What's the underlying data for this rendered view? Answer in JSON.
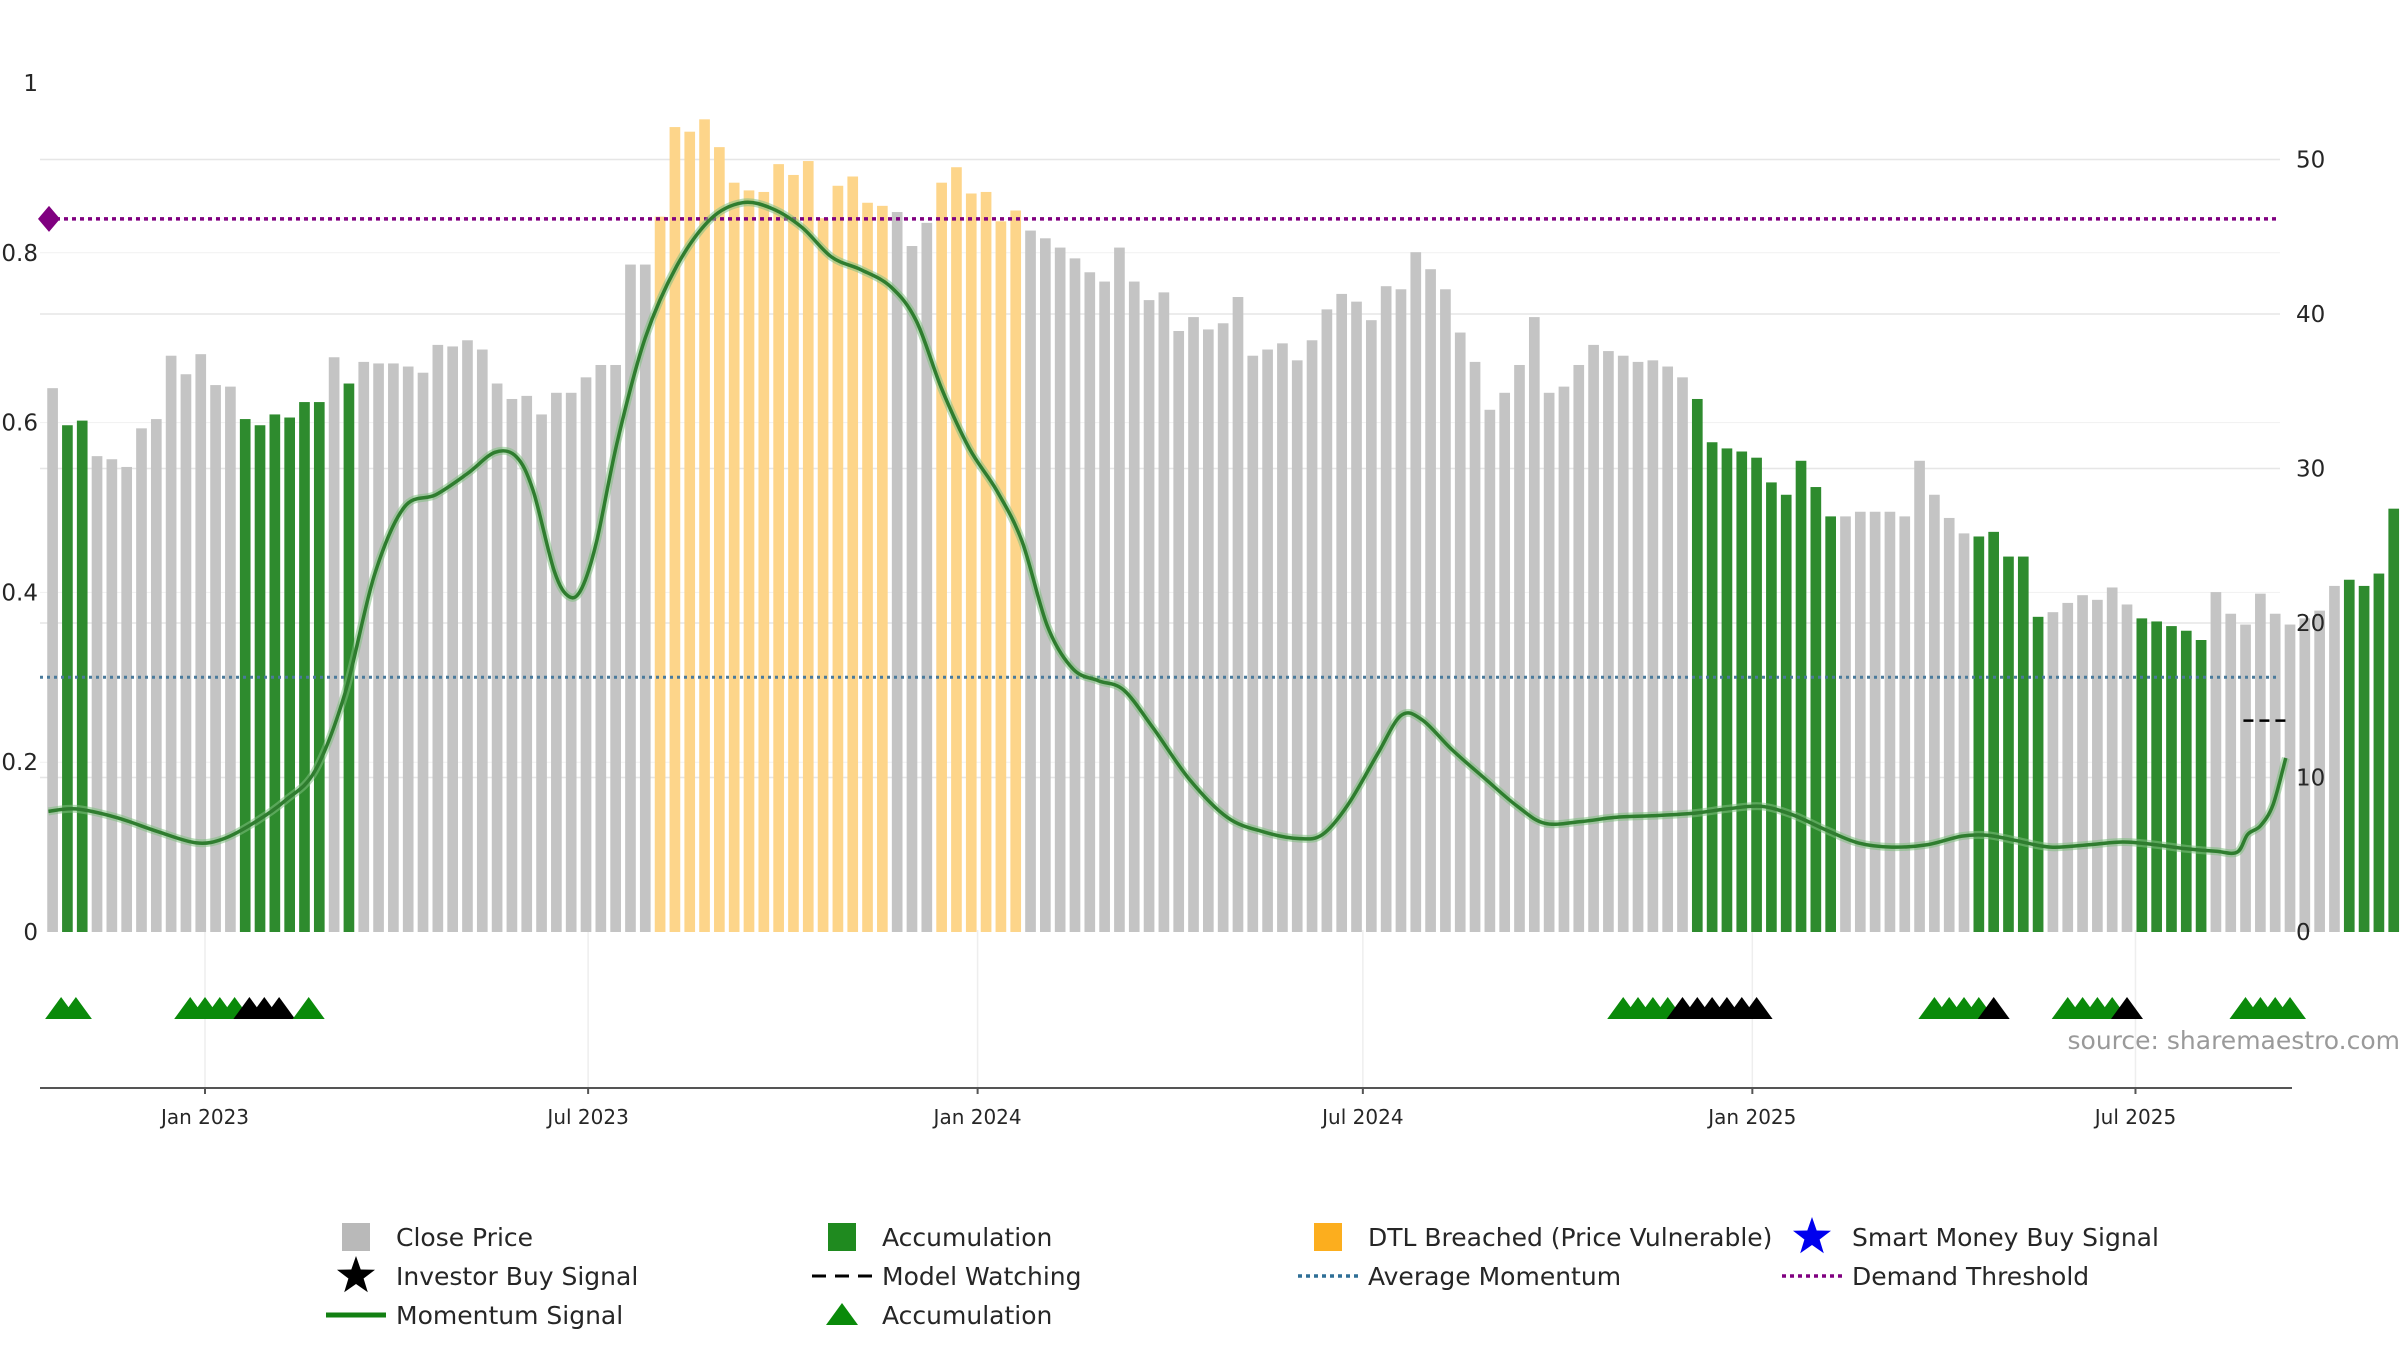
{
  "chart_data": {
    "type": "bar",
    "source_note": "source: sharemaestro.com",
    "left_axis": {
      "ylim": [
        0,
        1
      ],
      "ticks": [
        "0",
        "0.2",
        "0.4",
        "0.6",
        "0.8",
        "1"
      ],
      "tick_values": [
        0,
        0.2,
        0.4,
        0.6,
        0.8,
        1
      ]
    },
    "right_axis": {
      "ylim": [
        0,
        55.3
      ],
      "ticks": [
        "0",
        "10",
        "20",
        "30",
        "40",
        "50"
      ],
      "tick_values": [
        0,
        10,
        20,
        30,
        40,
        50
      ]
    },
    "x_axis": {
      "start": "2022-10-16",
      "end": "2025-09-12",
      "ticks": [
        {
          "label": "Jan 2023",
          "date": "2023-01-01"
        },
        {
          "label": "Jul 2023",
          "date": "2023-07-01"
        },
        {
          "label": "Jan 2024",
          "date": "2024-01-01"
        },
        {
          "label": "Jul 2024",
          "date": "2024-07-01"
        },
        {
          "label": "Jan 2025",
          "date": "2025-01-01"
        },
        {
          "label": "Jul 2025",
          "date": "2025-07-01"
        }
      ]
    },
    "colors": {
      "close": "#c4c4c4",
      "accumulation": "#2e8b2e",
      "dtl": "#fdd58a",
      "momentum": "#2f7d2f",
      "momentum_glow": "#7fbf7f",
      "avg_momentum": "#4a7a9b",
      "demand": "#800080",
      "triangle_green": "#0a8a0a",
      "triangle_black": "#000000",
      "star_blue": "#0000ee",
      "grid": "#e6e6e6"
    },
    "series": [
      {
        "name": "Close Price",
        "unit": "right axis",
        "start": "2022-10-21",
        "step_days": 7,
        "values": [
          35.2,
          32.8,
          33.1,
          30.8,
          30.6,
          30.1,
          32.6,
          33.2,
          37.3,
          36.1,
          37.4,
          35.4,
          35.3,
          33.2,
          32.8,
          33.5,
          33.3,
          34.3,
          34.3,
          37.2,
          35.5,
          36.9,
          36.8,
          36.8,
          36.6,
          36.2,
          38.0,
          37.9,
          38.3,
          37.7,
          35.5,
          34.5,
          34.7,
          33.5,
          34.9,
          34.9,
          35.9,
          36.7,
          36.7,
          43.2,
          43.2,
          46.3,
          52.1,
          51.8,
          52.6,
          50.8,
          48.5,
          48.0,
          47.9,
          49.7,
          49.0,
          49.9,
          46.2,
          48.3,
          48.9,
          47.2,
          47.0,
          46.6,
          44.4,
          45.9,
          48.5,
          49.5,
          47.8,
          47.9,
          46.0,
          46.7,
          45.4,
          44.9,
          44.3,
          43.6,
          42.7,
          42.1,
          44.3,
          42.1,
          40.9,
          41.4,
          38.9,
          39.8,
          39.0,
          39.4,
          41.1,
          37.3,
          37.7,
          38.1,
          37.0,
          38.3,
          40.3,
          41.3,
          40.8,
          39.6,
          41.8,
          41.6,
          44.0,
          42.9,
          41.6,
          38.8,
          36.9,
          33.8,
          34.9,
          36.7,
          39.8,
          34.9,
          35.3,
          36.7,
          38.0,
          37.6,
          37.3,
          36.9,
          37.0,
          36.6,
          35.9,
          34.5,
          31.7,
          31.3,
          31.1,
          30.7,
          29.1,
          28.3,
          30.5,
          28.8,
          26.9,
          26.9,
          27.2,
          27.2,
          27.2,
          26.9,
          30.5,
          28.3,
          26.8,
          25.8,
          25.6,
          25.9,
          24.3,
          24.3,
          20.4,
          20.7,
          21.3,
          21.8,
          21.5,
          22.3,
          21.2,
          20.3,
          20.1,
          19.8,
          19.5,
          18.9,
          22.0,
          20.6,
          19.9,
          21.9,
          20.6,
          19.9,
          20.3,
          20.8,
          22.4,
          22.8,
          22.4,
          23.2,
          27.4
        ],
        "bar_category": [
          "C",
          "A",
          "A",
          "C",
          "C",
          "C",
          "C",
          "C",
          "C",
          "C",
          "C",
          "C",
          "C",
          "A",
          "A",
          "A",
          "A",
          "A",
          "A",
          "C",
          "A",
          "C",
          "C",
          "C",
          "C",
          "C",
          "C",
          "C",
          "C",
          "C",
          "C",
          "C",
          "C",
          "C",
          "C",
          "C",
          "C",
          "C",
          "C",
          "C",
          "C",
          "D",
          "D",
          "D",
          "D",
          "D",
          "D",
          "D",
          "D",
          "D",
          "D",
          "D",
          "D",
          "D",
          "D",
          "D",
          "D",
          "C",
          "C",
          "C",
          "D",
          "D",
          "D",
          "D",
          "D",
          "D",
          "C",
          "C",
          "C",
          "C",
          "C",
          "C",
          "C",
          "C",
          "C",
          "C",
          "C",
          "C",
          "C",
          "C",
          "C",
          "C",
          "C",
          "C",
          "C",
          "C",
          "C",
          "C",
          "C",
          "C",
          "C",
          "C",
          "C",
          "C",
          "C",
          "C",
          "C",
          "C",
          "C",
          "C",
          "C",
          "C",
          "C",
          "C",
          "C",
          "C",
          "C",
          "C",
          "C",
          "C",
          "C",
          "A",
          "A",
          "A",
          "A",
          "A",
          "A",
          "A",
          "A",
          "A",
          "A",
          "C",
          "C",
          "C",
          "C",
          "C",
          "C",
          "C",
          "C",
          "C",
          "A",
          "A",
          "A",
          "A",
          "A",
          "C",
          "C",
          "C",
          "C",
          "C",
          "C",
          "A",
          "A",
          "A",
          "A",
          "A",
          "C",
          "C",
          "C",
          "C",
          "C",
          "C",
          "C",
          "C",
          "C",
          "A",
          "A",
          "A",
          "A"
        ]
      },
      {
        "name": "Momentum Signal",
        "unit": "left axis",
        "points": [
          [
            "2022-10-19",
            0.142
          ],
          [
            "2022-11-01",
            0.145
          ],
          [
            "2022-11-20",
            0.135
          ],
          [
            "2022-12-10",
            0.118
          ],
          [
            "2022-12-28",
            0.105
          ],
          [
            "2023-01-10",
            0.11
          ],
          [
            "2023-01-25",
            0.13
          ],
          [
            "2023-02-08",
            0.155
          ],
          [
            "2023-02-22",
            0.19
          ],
          [
            "2023-03-08",
            0.28
          ],
          [
            "2023-03-22",
            0.42
          ],
          [
            "2023-04-05",
            0.5
          ],
          [
            "2023-04-20",
            0.515
          ],
          [
            "2023-05-05",
            0.54
          ],
          [
            "2023-05-18",
            0.565
          ],
          [
            "2023-05-28",
            0.56
          ],
          [
            "2023-06-05",
            0.52
          ],
          [
            "2023-06-15",
            0.425
          ],
          [
            "2023-06-22",
            0.395
          ],
          [
            "2023-06-28",
            0.405
          ],
          [
            "2023-07-05",
            0.46
          ],
          [
            "2023-07-15",
            0.58
          ],
          [
            "2023-07-28",
            0.7
          ],
          [
            "2023-08-12",
            0.785
          ],
          [
            "2023-08-28",
            0.84
          ],
          [
            "2023-09-12",
            0.859
          ],
          [
            "2023-09-26",
            0.852
          ],
          [
            "2023-10-10",
            0.83
          ],
          [
            "2023-10-24",
            0.795
          ],
          [
            "2023-11-07",
            0.78
          ],
          [
            "2023-11-21",
            0.76
          ],
          [
            "2023-12-03",
            0.72
          ],
          [
            "2023-12-15",
            0.64
          ],
          [
            "2023-12-28",
            0.57
          ],
          [
            "2024-01-10",
            0.52
          ],
          [
            "2024-01-22",
            0.46
          ],
          [
            "2024-02-03",
            0.36
          ],
          [
            "2024-02-15",
            0.31
          ],
          [
            "2024-02-27",
            0.296
          ],
          [
            "2024-03-10",
            0.285
          ],
          [
            "2024-03-24",
            0.24
          ],
          [
            "2024-04-10",
            0.18
          ],
          [
            "2024-04-28",
            0.135
          ],
          [
            "2024-05-15",
            0.118
          ],
          [
            "2024-06-01",
            0.11
          ],
          [
            "2024-06-12",
            0.115
          ],
          [
            "2024-06-24",
            0.15
          ],
          [
            "2024-07-08",
            0.21
          ],
          [
            "2024-07-19",
            0.255
          ],
          [
            "2024-07-29",
            0.25
          ],
          [
            "2024-08-12",
            0.215
          ],
          [
            "2024-08-28",
            0.18
          ],
          [
            "2024-09-12",
            0.148
          ],
          [
            "2024-09-25",
            0.128
          ],
          [
            "2024-10-12",
            0.13
          ],
          [
            "2024-10-28",
            0.135
          ],
          [
            "2024-11-15",
            0.137
          ],
          [
            "2024-12-05",
            0.14
          ],
          [
            "2024-12-20",
            0.145
          ],
          [
            "2025-01-05",
            0.148
          ],
          [
            "2025-01-20",
            0.138
          ],
          [
            "2025-02-05",
            0.12
          ],
          [
            "2025-02-20",
            0.105
          ],
          [
            "2025-03-08",
            0.1
          ],
          [
            "2025-03-25",
            0.103
          ],
          [
            "2025-04-10",
            0.113
          ],
          [
            "2025-04-22",
            0.114
          ],
          [
            "2025-05-05",
            0.108
          ],
          [
            "2025-05-22",
            0.1
          ],
          [
            "2025-06-10",
            0.103
          ],
          [
            "2025-06-25",
            0.106
          ],
          [
            "2025-07-10",
            0.103
          ],
          [
            "2025-07-25",
            0.098
          ],
          [
            "2025-08-08",
            0.095
          ],
          [
            "2025-08-18",
            0.094
          ],
          [
            "2025-08-23",
            0.115
          ],
          [
            "2025-08-29",
            0.125
          ],
          [
            "2025-09-04",
            0.15
          ],
          [
            "2025-09-10",
            0.205
          ]
        ]
      },
      {
        "name": "Average Momentum",
        "unit": "left axis",
        "value": 0.3
      },
      {
        "name": "Demand Threshold",
        "unit": "left axis",
        "value": 0.84
      },
      {
        "name": "Model Watching",
        "unit": "left axis",
        "points": [
          [
            "2025-08-21",
            0.249
          ],
          [
            "2025-09-12",
            0.249
          ]
        ]
      },
      {
        "name": "Accumulation",
        "kind": "triangle markers",
        "points": [
          [
            "2022-10-25",
            "green"
          ],
          [
            "2022-11-01",
            "green"
          ],
          [
            "2022-12-25",
            "green"
          ],
          [
            "2023-01-01",
            "green"
          ],
          [
            "2023-01-08",
            "green"
          ],
          [
            "2023-01-15",
            "green"
          ],
          [
            "2023-01-22",
            "black"
          ],
          [
            "2023-01-29",
            "black"
          ],
          [
            "2023-02-05",
            "black"
          ],
          [
            "2023-02-19",
            "green"
          ],
          [
            "2024-11-01",
            "green"
          ],
          [
            "2024-11-08",
            "green"
          ],
          [
            "2024-11-15",
            "green"
          ],
          [
            "2024-11-22",
            "green"
          ],
          [
            "2024-11-29",
            "black"
          ],
          [
            "2024-12-06",
            "black"
          ],
          [
            "2024-12-13",
            "black"
          ],
          [
            "2024-12-20",
            "black"
          ],
          [
            "2024-12-27",
            "black"
          ],
          [
            "2025-01-03",
            "black"
          ],
          [
            "2025-03-28",
            "green"
          ],
          [
            "2025-04-04",
            "green"
          ],
          [
            "2025-04-11",
            "green"
          ],
          [
            "2025-04-18",
            "green"
          ],
          [
            "2025-04-25",
            "black"
          ],
          [
            "2025-05-30",
            "green"
          ],
          [
            "2025-06-06",
            "green"
          ],
          [
            "2025-06-13",
            "green"
          ],
          [
            "2025-06-20",
            "green"
          ],
          [
            "2025-06-27",
            "black"
          ],
          [
            "2025-08-22",
            "green"
          ],
          [
            "2025-08-29",
            "green"
          ],
          [
            "2025-09-05",
            "green"
          ],
          [
            "2025-09-12",
            "green"
          ]
        ]
      }
    ],
    "legend": {
      "placement": "bottom",
      "items": [
        {
          "label": "Close Price",
          "symbol": "square",
          "color": "#b9b9b9"
        },
        {
          "label": "Accumulation",
          "symbol": "square",
          "color": "#1f8a1f"
        },
        {
          "label": "DTL Breached (Price Vulnerable)",
          "symbol": "square",
          "color": "#fcae1e"
        },
        {
          "label": "Smart Money Buy Signal",
          "symbol": "star",
          "color": "#0000ee"
        },
        {
          "label": "Investor Buy Signal",
          "symbol": "star",
          "color": "#000000"
        },
        {
          "label": "Model Watching",
          "symbol": "dash",
          "color": "#000000"
        },
        {
          "label": "Average Momentum",
          "symbol": "dotted",
          "color": "#2e6f96"
        },
        {
          "label": "Demand Threshold",
          "symbol": "dotted",
          "color": "#800080"
        },
        {
          "label": "Momentum Signal",
          "symbol": "line",
          "color": "#138013"
        },
        {
          "label": "Accumulation",
          "symbol": "triangle",
          "color": "#0a8a0a"
        }
      ]
    }
  }
}
